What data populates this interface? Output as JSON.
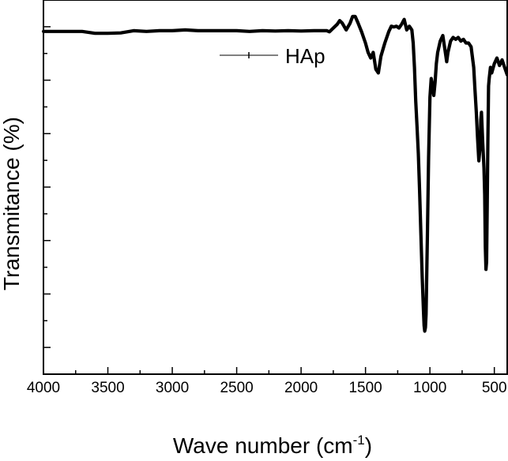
{
  "chart_data": {
    "type": "line",
    "xlabel": "Wave number (cm",
    "xlabel_sup": "-1",
    "xlabel_close": ")",
    "ylabel": "Transmitance (%)",
    "x_reversed": true,
    "xlim": [
      4000,
      400
    ],
    "ylim": [
      0,
      100
    ],
    "y_tick_labels_shown": false,
    "legend_position": "top-center",
    "x_ticks": [
      4000,
      3500,
      3000,
      2500,
      2000,
      1500,
      1000,
      500
    ],
    "x_tick_labels": [
      "4000",
      "3500",
      "3000",
      "2500",
      "2000",
      "1500",
      "1000",
      "500"
    ],
    "series": [
      {
        "name": "HAp",
        "color": "#000000",
        "x": [
          4000,
          3800,
          3700,
          3600,
          3500,
          3400,
          3300,
          3200,
          3100,
          3000,
          2900,
          2800,
          2700,
          2600,
          2500,
          2400,
          2300,
          2200,
          2100,
          2000,
          1900,
          1800,
          1780,
          1750,
          1720,
          1700,
          1680,
          1650,
          1620,
          1600,
          1580,
          1560,
          1530,
          1500,
          1480,
          1460,
          1440,
          1420,
          1400,
          1380,
          1350,
          1320,
          1300,
          1280,
          1260,
          1240,
          1220,
          1200,
          1180,
          1160,
          1140,
          1130,
          1120,
          1110,
          1100,
          1090,
          1080,
          1070,
          1060,
          1050,
          1045,
          1040,
          1035,
          1030,
          1020,
          1010,
          1000,
          990,
          980,
          970,
          960,
          950,
          940,
          920,
          900,
          880,
          870,
          860,
          840,
          820,
          800,
          780,
          760,
          740,
          720,
          700,
          680,
          660,
          650,
          640,
          630,
          620,
          610,
          605,
          600,
          595,
          590,
          580,
          575,
          570,
          565,
          560,
          555,
          550,
          545,
          540,
          530,
          520,
          500,
          480,
          460,
          440,
          420,
          400
        ],
        "y": [
          91.6,
          91.6,
          91.6,
          91.1,
          91.1,
          91.2,
          91.8,
          91.6,
          91.8,
          91.8,
          92.0,
          91.8,
          91.8,
          91.8,
          91.8,
          91.6,
          91.8,
          91.7,
          91.8,
          91.7,
          91.8,
          91.8,
          91.5,
          92.5,
          93.5,
          94.5,
          93.8,
          92.0,
          93.8,
          95.6,
          95.6,
          94.0,
          91.5,
          88.5,
          86.0,
          84.5,
          86.0,
          81.5,
          80.5,
          85.0,
          88.5,
          91.5,
          93.0,
          92.8,
          93.0,
          92.5,
          93.5,
          94.8,
          92.0,
          93.0,
          92.0,
          88.5,
          82.0,
          73.0,
          66.0,
          59.0,
          49.0,
          37.0,
          26.0,
          17.0,
          13.0,
          11.5,
          12.5,
          16.0,
          36.0,
          58.0,
          74.0,
          79.0,
          77.0,
          74.5,
          78.0,
          83.0,
          86.0,
          89.0,
          90.5,
          86.0,
          83.5,
          86.0,
          89.0,
          90.0,
          89.5,
          90.0,
          89.0,
          89.5,
          88.5,
          88.5,
          87.5,
          82.0,
          76.0,
          70.0,
          63.0,
          57.0,
          61.0,
          68.0,
          70.0,
          66.0,
          62.0,
          55.0,
          48.0,
          34.0,
          28.0,
          30.0,
          45.0,
          62.0,
          77.0,
          79.0,
          82.0,
          80.5,
          83.0,
          84.5,
          82.5,
          84.0,
          82.0,
          80.0
        ]
      }
    ]
  }
}
